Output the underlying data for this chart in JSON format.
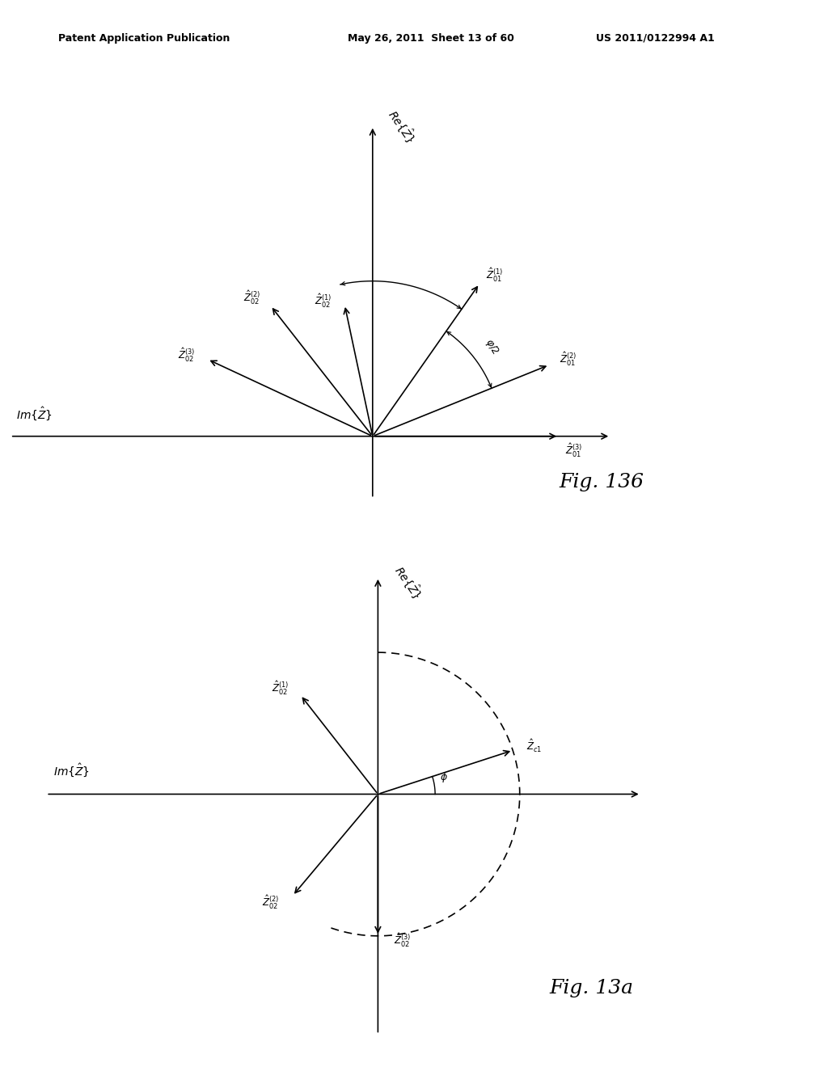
{
  "bg_color": "#ffffff",
  "header_left": "Patent Application Publication",
  "header_mid": "May 26, 2011  Sheet 13 of 60",
  "header_right": "US 2011/0122994 A1"
}
